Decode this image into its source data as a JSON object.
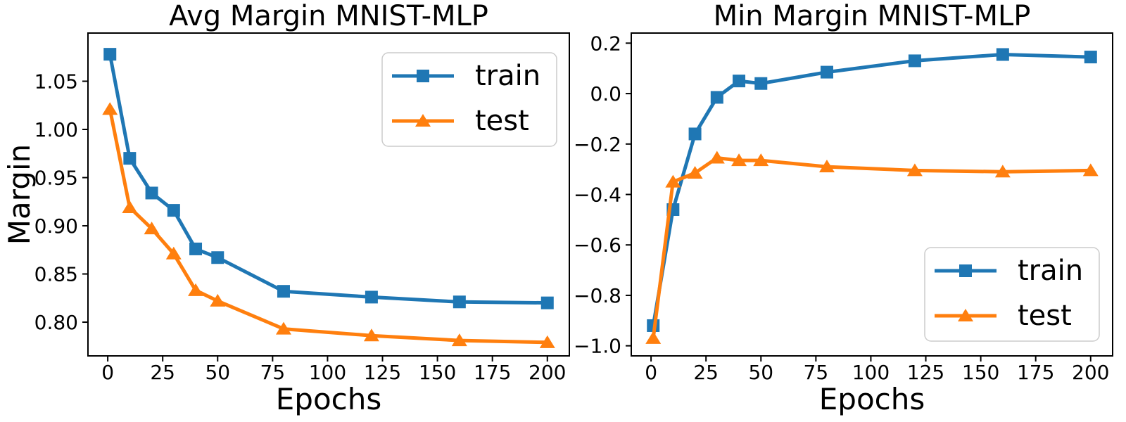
{
  "chart_data": [
    {
      "type": "line",
      "title": "Avg Margin MNIST-MLP",
      "xlabel": "Epochs",
      "ylabel": "Margin",
      "x": [
        1,
        10,
        20,
        30,
        40,
        50,
        80,
        120,
        160,
        200
      ],
      "series": [
        {
          "name": "train",
          "color": "#1f77b4",
          "marker": "square",
          "values": [
            1.078,
            0.97,
            0.934,
            0.916,
            0.876,
            0.867,
            0.832,
            0.826,
            0.821,
            0.82
          ]
        },
        {
          "name": "test",
          "color": "#ff7f0e",
          "marker": "triangle",
          "values": [
            1.021,
            0.919,
            0.897,
            0.871,
            0.833,
            0.822,
            0.793,
            0.786,
            0.781,
            0.779
          ]
        }
      ],
      "xlim": [
        -9,
        210
      ],
      "ylim": [
        0.765,
        1.1
      ],
      "xtick_values": [
        0,
        25,
        50,
        75,
        100,
        125,
        150,
        175,
        200
      ],
      "xtick_labels": [
        "0",
        "25",
        "50",
        "75",
        "100",
        "125",
        "150",
        "175",
        "200"
      ],
      "ytick_values": [
        1.05,
        1.0,
        0.95,
        0.9,
        0.85,
        0.8
      ],
      "ytick_labels": [
        "1.05",
        "1.00",
        "0.95",
        "0.90",
        "0.85",
        "0.80"
      ],
      "grid": false,
      "legend_position": "upper-right",
      "legend_entries": [
        "train",
        "test"
      ]
    },
    {
      "type": "line",
      "title": "Min Margin MNIST-MLP",
      "xlabel": "Epochs",
      "ylabel": "",
      "x": [
        1,
        10,
        20,
        30,
        40,
        50,
        80,
        120,
        160,
        200
      ],
      "series": [
        {
          "name": "train",
          "color": "#1f77b4",
          "marker": "square",
          "values": [
            -0.92,
            -0.46,
            -0.16,
            -0.015,
            0.05,
            0.04,
            0.085,
            0.13,
            0.155,
            0.145
          ]
        },
        {
          "name": "test",
          "color": "#ff7f0e",
          "marker": "triangle",
          "values": [
            -0.97,
            -0.35,
            -0.315,
            -0.255,
            -0.265,
            -0.265,
            -0.29,
            -0.305,
            -0.31,
            -0.305
          ]
        }
      ],
      "xlim": [
        -9,
        210
      ],
      "ylim": [
        -1.04,
        0.24
      ],
      "xtick_values": [
        0,
        25,
        50,
        75,
        100,
        125,
        150,
        175,
        200
      ],
      "xtick_labels": [
        "0",
        "25",
        "50",
        "75",
        "100",
        "125",
        "150",
        "175",
        "200"
      ],
      "ytick_values": [
        0.2,
        0.0,
        -0.2,
        -0.4,
        -0.6,
        -0.8,
        -1.0
      ],
      "ytick_labels": [
        "0.2",
        "0.0",
        "−0.2",
        "−0.4",
        "−0.6",
        "−0.8",
        "−1.0"
      ],
      "grid": false,
      "legend_position": "lower-right",
      "legend_entries": [
        "train",
        "test"
      ]
    }
  ]
}
